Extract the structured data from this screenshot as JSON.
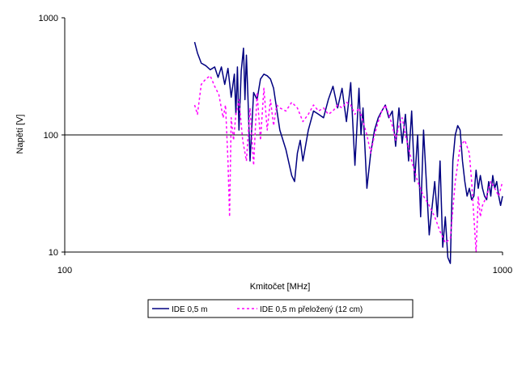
{
  "chart_data": {
    "type": "line",
    "title": "",
    "xlabel": "Kmitočet [MHz]",
    "ylabel": "Napětí [V]",
    "x_scale": "log",
    "y_scale": "log",
    "xlim": [
      100,
      1000
    ],
    "ylim": [
      10,
      1000
    ],
    "x_ticks": [
      "100",
      "1000"
    ],
    "y_ticks": [
      "10",
      "100",
      "1000"
    ],
    "gridlines_y": [
      100
    ],
    "legend_position": "bottom",
    "series": [
      {
        "name": "IDE 0,5 m",
        "color": "#000080",
        "style": "solid",
        "x": [
          198,
          201,
          205,
          210,
          215,
          220,
          224,
          228,
          232,
          236,
          240,
          244,
          246,
          248,
          250,
          253,
          256,
          258,
          260,
          262,
          265,
          270,
          275,
          280,
          285,
          290,
          295,
          300,
          310,
          320,
          330,
          335,
          340,
          345,
          350,
          360,
          370,
          380,
          390,
          400,
          410,
          420,
          430,
          440,
          450,
          460,
          470,
          475,
          480,
          490,
          500,
          510,
          520,
          530,
          540,
          550,
          560,
          570,
          580,
          590,
          600,
          610,
          620,
          630,
          640,
          650,
          660,
          680,
          700,
          710,
          720,
          730,
          740,
          750,
          760,
          770,
          780,
          790,
          800,
          810,
          820,
          830,
          840,
          850,
          860,
          870,
          880,
          890,
          900,
          910,
          920,
          930,
          940,
          950,
          960,
          970,
          980,
          990,
          1000
        ],
        "values": [
          620,
          500,
          410,
          390,
          360,
          380,
          310,
          380,
          270,
          370,
          210,
          330,
          150,
          380,
          110,
          350,
          550,
          200,
          480,
          220,
          60,
          230,
          200,
          300,
          330,
          320,
          300,
          250,
          110,
          75,
          45,
          40,
          70,
          90,
          60,
          110,
          160,
          150,
          140,
          200,
          260,
          170,
          250,
          130,
          280,
          55,
          250,
          100,
          170,
          35,
          70,
          110,
          140,
          160,
          180,
          140,
          160,
          80,
          170,
          85,
          150,
          60,
          160,
          40,
          100,
          20,
          110,
          14,
          40,
          20,
          60,
          11,
          20,
          9,
          8,
          60,
          100,
          120,
          110,
          60,
          40,
          30,
          35,
          28,
          30,
          50,
          35,
          45,
          35,
          30,
          28,
          40,
          30,
          45,
          35,
          40,
          30,
          25,
          30
        ]
      },
      {
        "name": "IDE 0,5 m přeložený (12 cm)",
        "color": "#ff00ff",
        "style": "dashed",
        "x": [
          198,
          201,
          205,
          210,
          215,
          220,
          225,
          230,
          233,
          236,
          238,
          240,
          243,
          246,
          250,
          255,
          260,
          265,
          270,
          275,
          280,
          285,
          290,
          295,
          300,
          305,
          310,
          320,
          330,
          340,
          350,
          360,
          370,
          380,
          390,
          400,
          410,
          420,
          430,
          440,
          450,
          460,
          470,
          480,
          490,
          500,
          510,
          520,
          530,
          540,
          550,
          560,
          570,
          580,
          590,
          600,
          620,
          640,
          660,
          680,
          700,
          720,
          740,
          760,
          780,
          800,
          820,
          840,
          850,
          860,
          870,
          880,
          890,
          900,
          920,
          940,
          960,
          980,
          1000
        ],
        "values": [
          180,
          150,
          270,
          300,
          320,
          260,
          220,
          140,
          180,
          60,
          20,
          140,
          90,
          150,
          200,
          90,
          60,
          170,
          55,
          230,
          90,
          250,
          110,
          200,
          120,
          180,
          170,
          160,
          190,
          170,
          130,
          150,
          180,
          160,
          170,
          150,
          160,
          180,
          170,
          190,
          180,
          150,
          170,
          130,
          100,
          70,
          100,
          130,
          160,
          180,
          150,
          120,
          90,
          120,
          140,
          100,
          60,
          40,
          30,
          25,
          20,
          15,
          12,
          13,
          40,
          80,
          90,
          70,
          40,
          20,
          10,
          30,
          20,
          25,
          30,
          40,
          35,
          30,
          40
        ]
      }
    ]
  }
}
